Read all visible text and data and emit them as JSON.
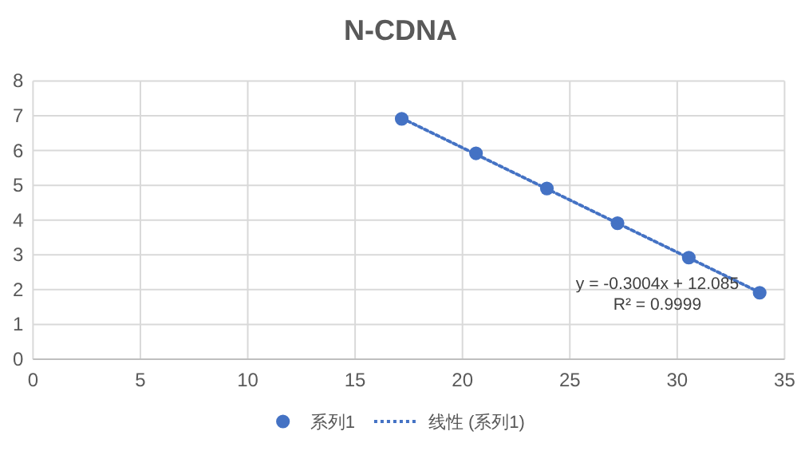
{
  "chart_data": {
    "type": "scatter",
    "title": "N-CDNA",
    "xlim": [
      0,
      35
    ],
    "ylim": [
      0,
      8
    ],
    "xticks": [
      0,
      5,
      10,
      15,
      20,
      25,
      30,
      35
    ],
    "yticks": [
      0,
      1,
      2,
      3,
      4,
      5,
      6,
      7,
      8
    ],
    "grid": true,
    "legend": "bottom",
    "annotations": [
      "y = -0.3004x + 12.085",
      "R² = 0.9999"
    ],
    "series": [
      {
        "name": "系列1",
        "color": "#4472c4",
        "marker": "circle",
        "x": [
          17.17,
          20.63,
          23.93,
          27.22,
          30.54,
          33.84
        ],
        "values": [
          6.91,
          5.92,
          4.91,
          3.91,
          2.92,
          1.91
        ]
      },
      {
        "name": "线性 (系列1)",
        "type": "line",
        "color": "#4472c4",
        "line_style": "dotted",
        "x": [
          17.17,
          33.84
        ],
        "values": [
          6.93,
          1.92
        ]
      }
    ]
  }
}
